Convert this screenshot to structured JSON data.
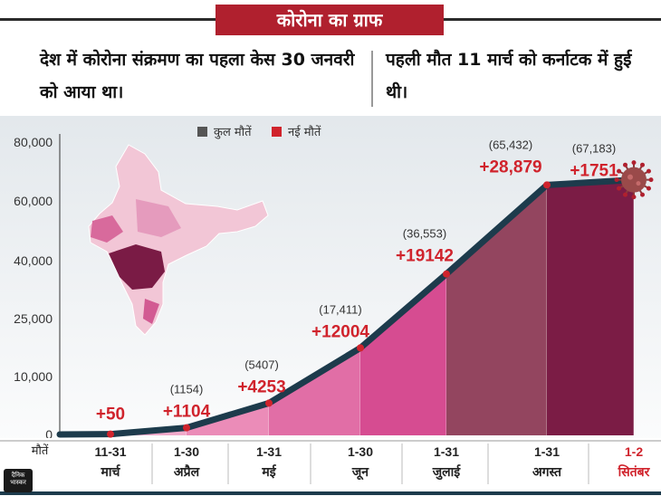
{
  "header": {
    "title": "कोरोना का ग्राफ"
  },
  "facts": {
    "first_case": "देश में कोरोना संक्रमण का पहला केस 30 जनवरी को आया था।",
    "first_death": "पहली मौत 11 मार्च को कर्नाटक में हुई थी।"
  },
  "logo": {
    "text": "दैनिक भास्कर"
  },
  "chart_data": {
    "type": "area",
    "legend": [
      "कुल मौतें",
      "नई मौतें"
    ],
    "legend_colors": [
      "#555555",
      "#d0232c"
    ],
    "ylabel": "मौतें",
    "yticks": [
      "0",
      "10,000",
      "25,000",
      "40,000",
      "60,000",
      "80,000"
    ],
    "categories": [
      "11-31 मार्च",
      "1-30 अप्रैल",
      "1-31 मई",
      "1-30 जून",
      "1-31 जुलाई",
      "1-31 अगस्त",
      "1-2 सितंबर"
    ],
    "cumulative_labels": [
      "",
      "(1154)",
      "(5407)",
      "(17,411)",
      "(36,553)",
      "(65,432)",
      "(67,183)"
    ],
    "new_labels": [
      "+50",
      "+1104",
      "+4253",
      "+12004",
      "+19142",
      "+28,879",
      "+1751"
    ],
    "cumulative_values": [
      50,
      1154,
      5407,
      17411,
      36553,
      65432,
      67183
    ],
    "new_values": [
      50,
      1104,
      4253,
      12004,
      19142,
      28879,
      1751
    ],
    "fill_colors": [
      "#f7d3e3",
      "#f1aacb",
      "#eb8cb8",
      "#e16ea6",
      "#d64c91",
      "#93455f",
      "#7b1c45"
    ],
    "highlight_color": "#d0232c",
    "line_color": "#1d3b4c"
  }
}
